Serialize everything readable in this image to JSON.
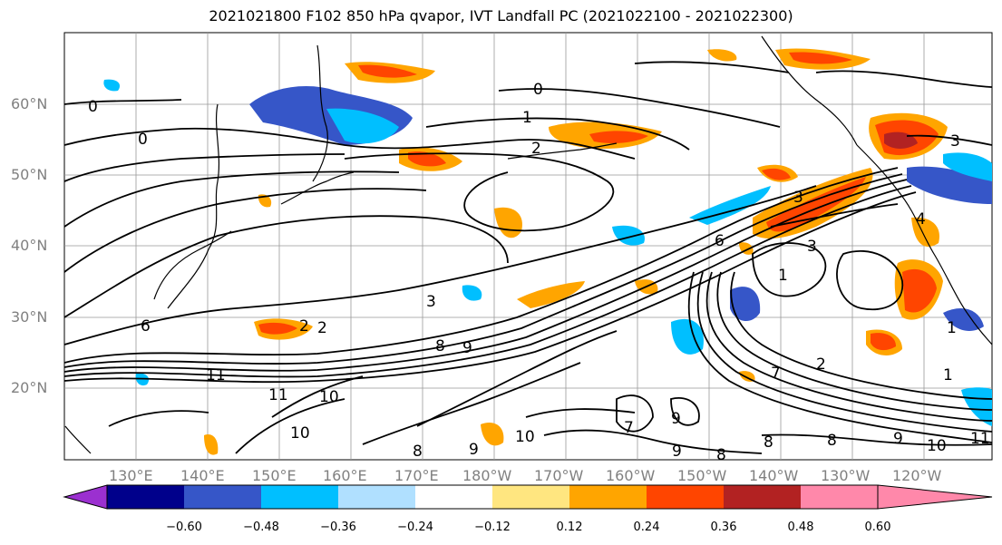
{
  "title": "2021021800 F102 850 hPa qvapor, IVT Landfall PC (2021022100 - 2021022300)",
  "map": {
    "lat_labels": [
      "60°N",
      "50°N",
      "40°N",
      "30°N",
      "20°N"
    ],
    "lon_labels": [
      "130°E",
      "140°E",
      "150°E",
      "160°E",
      "170°E",
      "180°W",
      "170°W",
      "160°W",
      "150°W",
      "140°W",
      "130°W",
      "120°W"
    ],
    "contour_labels": [
      "0",
      "0",
      "0",
      "1",
      "2",
      "2",
      "3",
      "3",
      "3",
      "3",
      "4",
      "1",
      "1",
      "1",
      "2",
      "2",
      "6",
      "7",
      "8",
      "9",
      "9",
      "10",
      "10",
      "10",
      "10",
      "11",
      "11",
      "11",
      "6",
      "8",
      "8",
      "9",
      "9",
      "9",
      "7",
      "8",
      "8"
    ]
  },
  "colorbar": {
    "colors": [
      "#9b30d0",
      "#00008b",
      "#3656c8",
      "#00bfff",
      "#b0e0ff",
      "#ffffff",
      "#ffe680",
      "#ffa500",
      "#ff4500",
      "#b22222",
      "#ff88aa"
    ],
    "tick_labels": [
      "−0.60",
      "−0.48",
      "−0.36",
      "−0.24",
      "−0.12",
      "0.12",
      "0.24",
      "0.36",
      "0.48",
      "0.60"
    ]
  }
}
